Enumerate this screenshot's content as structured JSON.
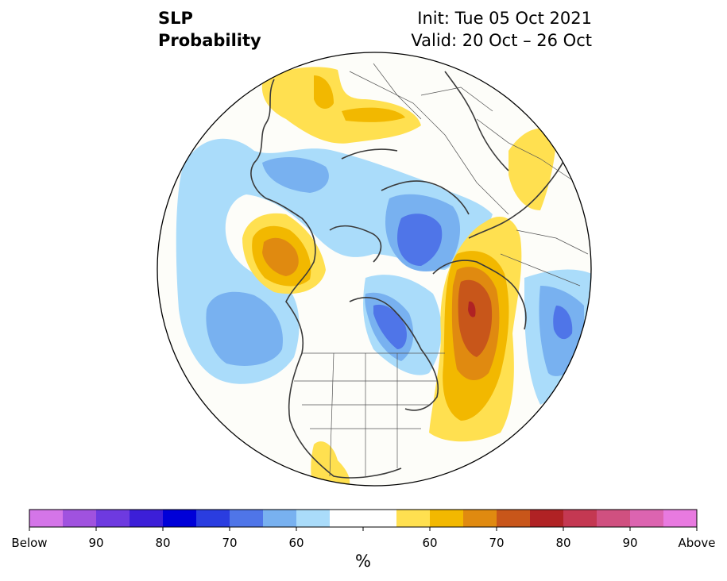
{
  "title": {
    "line1": "SLP",
    "line2": "Probability",
    "init": "Init: Tue 05 Oct 2021",
    "valid": "Valid: 20 Oct – 26 Oct"
  },
  "colorbar": {
    "unit": "%",
    "colors": [
      "#d475e8",
      "#a052df",
      "#6e3ae0",
      "#3c1fd8",
      "#0000d8",
      "#2a3de0",
      "#4f75e8",
      "#78b1f0",
      "#aadcfa",
      "#ffffff",
      "#ffe050",
      "#f2b800",
      "#e08a10",
      "#c8561a",
      "#b02224",
      "#c43852",
      "#d05080",
      "#dc64b0",
      "#e87ae0"
    ],
    "ticks": [
      {
        "label": "Below"
      },
      {
        "label": "90"
      },
      {
        "label": "80"
      },
      {
        "label": "70"
      },
      {
        "label": "60"
      },
      {
        "label": ""
      },
      {
        "label": "60"
      },
      {
        "label": "70"
      },
      {
        "label": "80"
      },
      {
        "label": "90"
      },
      {
        "label": "Above"
      }
    ]
  }
}
